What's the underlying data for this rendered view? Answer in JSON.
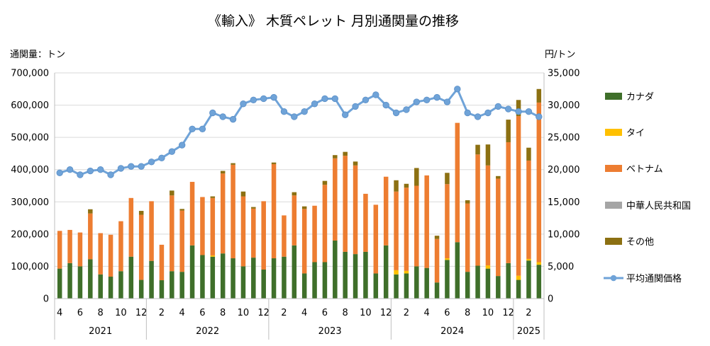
{
  "chart_data": {
    "type": "bar",
    "title": "《輸入》 木質ペレット 月別通関量の推移",
    "ylabel_left": "通関量：トン",
    "ylabel_right": "円/トン",
    "stacked": true,
    "ylim_left": [
      0,
      700000
    ],
    "ylim_right": [
      0,
      35000
    ],
    "yticks_left": [
      "0",
      "100,000",
      "200,000",
      "300,000",
      "400,000",
      "500,000",
      "600,000",
      "700,000"
    ],
    "yticks_right": [
      "0",
      "5,000",
      "10,000",
      "15,000",
      "20,000",
      "25,000",
      "30,000",
      "35,000"
    ],
    "grid": true,
    "legend_position": "right",
    "months": [
      4,
      5,
      6,
      7,
      8,
      9,
      10,
      11,
      12,
      1,
      2,
      3,
      4,
      5,
      6,
      7,
      8,
      9,
      10,
      11,
      12,
      1,
      2,
      3,
      4,
      5,
      6,
      7,
      8,
      9,
      10,
      11,
      12,
      1,
      2,
      3,
      4,
      5,
      6,
      7,
      8,
      9,
      10,
      11,
      12,
      1,
      2,
      3
    ],
    "month_tick_labels": [
      "4",
      "6",
      "8",
      "10",
      "12",
      "2",
      "4",
      "6",
      "8",
      "10",
      "12",
      "2",
      "4",
      "6",
      "8",
      "10",
      "12",
      "2",
      "4",
      "6",
      "8",
      "10",
      "12",
      "2"
    ],
    "years": [
      "2021",
      "2022",
      "2023",
      "2024",
      "2025"
    ],
    "series": [
      {
        "name": "カナダ",
        "color": "#3f6f2a",
        "values": [
          93000,
          110000,
          100000,
          122000,
          75000,
          68000,
          85000,
          130000,
          58000,
          117000,
          57000,
          85000,
          83000,
          165000,
          135000,
          130000,
          140000,
          125000,
          100000,
          127000,
          90000,
          125000,
          130000,
          165000,
          78000,
          113000,
          113000,
          180000,
          145000,
          138000,
          145000,
          78000,
          165000,
          75000,
          78000,
          100000,
          95000,
          50000,
          120000,
          175000,
          83000,
          102000,
          93000,
          70000,
          110000,
          58000,
          118000,
          105000
        ]
      },
      {
        "name": "タイ",
        "color": "#ffc000",
        "values": [
          0,
          0,
          0,
          0,
          0,
          0,
          0,
          0,
          0,
          0,
          0,
          0,
          0,
          0,
          0,
          4000,
          0,
          0,
          0,
          0,
          0,
          0,
          0,
          0,
          0,
          0,
          0,
          0,
          0,
          0,
          0,
          0,
          0,
          13000,
          8000,
          0,
          0,
          0,
          5000,
          0,
          0,
          0,
          10000,
          0,
          0,
          13000,
          5000,
          8000
        ]
      },
      {
        "name": "ベトナム",
        "color": "#ed7d31",
        "values": [
          117000,
          103000,
          105000,
          142000,
          128000,
          130000,
          155000,
          182000,
          202000,
          185000,
          110000,
          235000,
          190000,
          197000,
          180000,
          178000,
          248000,
          290000,
          217000,
          152000,
          212000,
          292000,
          128000,
          155000,
          200000,
          175000,
          240000,
          255000,
          298000,
          275000,
          180000,
          213000,
          213000,
          244000,
          258000,
          250000,
          287000,
          135000,
          230000,
          370000,
          212000,
          345000,
          310000,
          302000,
          375000,
          495000,
          305000,
          495000
        ]
      },
      {
        "name": "中華人民共和国",
        "color": "#a5a5a5",
        "values": [
          0,
          0,
          0,
          0,
          0,
          0,
          0,
          0,
          0,
          0,
          0,
          0,
          0,
          0,
          0,
          0,
          0,
          0,
          0,
          0,
          0,
          0,
          0,
          0,
          0,
          0,
          0,
          0,
          0,
          0,
          0,
          0,
          0,
          0,
          0,
          0,
          0,
          0,
          0,
          0,
          0,
          0,
          0,
          0,
          0,
          0,
          0,
          0
        ]
      },
      {
        "name": "その他",
        "color": "#8c7012",
        "values": [
          0,
          0,
          0,
          13000,
          0,
          0,
          0,
          0,
          12000,
          0,
          0,
          15000,
          5000,
          0,
          0,
          5000,
          8000,
          5000,
          15000,
          5000,
          0,
          5000,
          0,
          10000,
          8000,
          0,
          12000,
          10000,
          12000,
          12000,
          0,
          0,
          0,
          35000,
          12000,
          55000,
          0,
          10000,
          35000,
          0,
          10000,
          30000,
          65000,
          8000,
          70000,
          50000,
          40000,
          42000
        ]
      }
    ],
    "line_series": {
      "name": "平均通関価格",
      "color": "#6fa3d8",
      "values": [
        19500,
        20000,
        19200,
        19800,
        20000,
        19200,
        20200,
        20500,
        20500,
        21200,
        21800,
        22800,
        23800,
        26300,
        26300,
        28800,
        28200,
        27800,
        30200,
        30800,
        31000,
        31200,
        29000,
        28200,
        29000,
        30200,
        31000,
        31000,
        28500,
        29800,
        30800,
        31600,
        30000,
        28800,
        29300,
        30500,
        30800,
        31200,
        30500,
        32500,
        28800,
        28200,
        28800,
        29800,
        29400,
        29000,
        29000,
        28200
      ]
    }
  }
}
